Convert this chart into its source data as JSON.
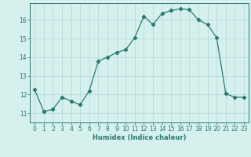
{
  "x": [
    0,
    1,
    2,
    3,
    4,
    5,
    6,
    7,
    8,
    9,
    10,
    11,
    12,
    13,
    14,
    15,
    16,
    17,
    18,
    19,
    20,
    21,
    22,
    23
  ],
  "y": [
    12.25,
    11.1,
    11.2,
    11.85,
    11.65,
    11.45,
    12.2,
    13.8,
    14.0,
    14.25,
    14.4,
    15.05,
    16.2,
    15.75,
    16.35,
    16.5,
    16.6,
    16.55,
    16.0,
    15.75,
    15.05,
    12.05,
    11.85,
    11.85
  ],
  "line_color": "#2a7a6e",
  "marker": "D",
  "markersize": 2.2,
  "linewidth": 0.9,
  "bg_color": "#d6f0ee",
  "grid_color": "#b0d8d5",
  "xlabel": "Humidex (Indice chaleur)",
  "xlabel_fontsize": 6,
  "xtick_labels": [
    "0",
    "1",
    "2",
    "3",
    "4",
    "5",
    "6",
    "7",
    "8",
    "9",
    "10",
    "11",
    "12",
    "13",
    "14",
    "15",
    "16",
    "17",
    "18",
    "19",
    "20",
    "21",
    "22",
    "23"
  ],
  "ytick_labels": [
    "11",
    "12",
    "13",
    "14",
    "15",
    "16"
  ],
  "yticks": [
    11,
    12,
    13,
    14,
    15,
    16
  ],
  "ylim": [
    10.5,
    16.9
  ],
  "xlim": [
    -0.5,
    23.5
  ],
  "tick_color": "#2a7a6e",
  "tick_fontsize": 5.5,
  "grid_linewidth": 0.5
}
